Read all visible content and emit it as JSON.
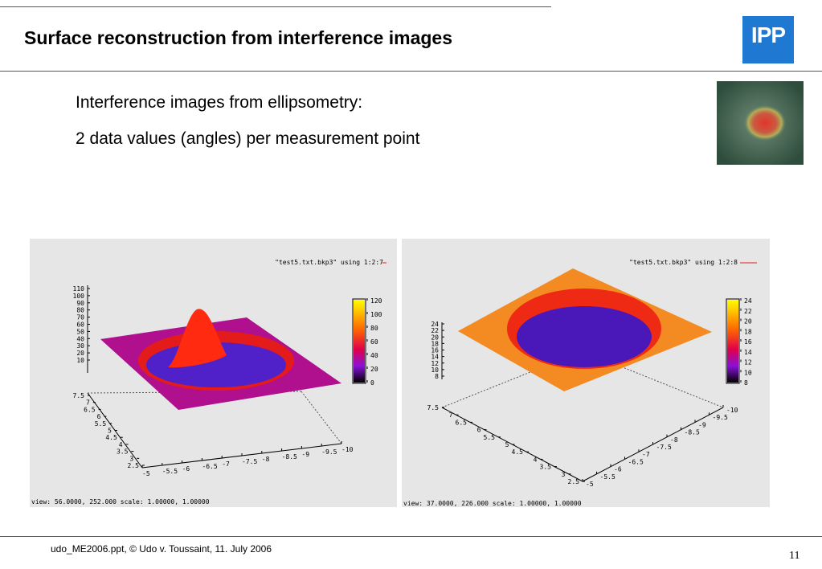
{
  "slide": {
    "title": "Surface reconstruction from interference images",
    "logo_text": "IPP",
    "bullets": [
      "Interference images from ellipsometry:",
      "2 data values (angles) per measurement point"
    ],
    "footer": "udo_ME2006.ppt, © Udo v. Toussaint, 11. July 2006",
    "page_number": "11"
  },
  "plots": [
    {
      "legend": "\"test5.txt.bkp3\" using 1:2:7",
      "view_text": "view:  56.0000,  252.000   scale:  1.00000,  1.00000",
      "z_ticks": [
        "110",
        "100",
        "90",
        "80",
        "70",
        "60",
        "50",
        "40",
        "30",
        "20",
        "10"
      ],
      "y_ticks": [
        "7.5",
        "7",
        "6.5",
        "6",
        "5.5",
        "5",
        "4.5",
        "4",
        "3.5",
        "3",
        "2.5"
      ],
      "x_ticks": [
        "-5",
        "-5.5",
        "-6",
        "-6.5",
        "-7",
        "-7.5",
        "-8",
        "-8.5",
        "-9",
        "-9.5",
        "-10"
      ],
      "cbar_ticks": [
        "120",
        "100",
        "80",
        "60",
        "40",
        "20",
        "0"
      ],
      "colors": {
        "surface": "#b0108e",
        "peak": "#ff2a10",
        "ring": "#e41b1b",
        "valley": "#5020c8"
      }
    },
    {
      "legend": "\"test5.txt.bkp3\" using 1:2:8",
      "view_text": "view:  37.0000,  226.000   scale:  1.00000,  1.00000",
      "z_ticks": [
        "24",
        "22",
        "20",
        "18",
        "16",
        "14",
        "12",
        "10",
        "8"
      ],
      "y_ticks": [
        "7.5",
        "7",
        "6.5",
        "6",
        "5.5",
        "5",
        "4.5",
        "4",
        "3.5",
        "3",
        "2.5"
      ],
      "x_ticks": [
        "-5",
        "-5.5",
        "-6",
        "-6.5",
        "-7",
        "-7.5",
        "-8",
        "-8.5",
        "-9",
        "-9.5",
        "-10"
      ],
      "cbar_ticks": [
        "24",
        "22",
        "20",
        "18",
        "16",
        "14",
        "12",
        "10",
        "8"
      ],
      "colors": {
        "surface": "#f48a22",
        "ring": "#ee2a14",
        "valley": "#4a18b8"
      }
    }
  ]
}
